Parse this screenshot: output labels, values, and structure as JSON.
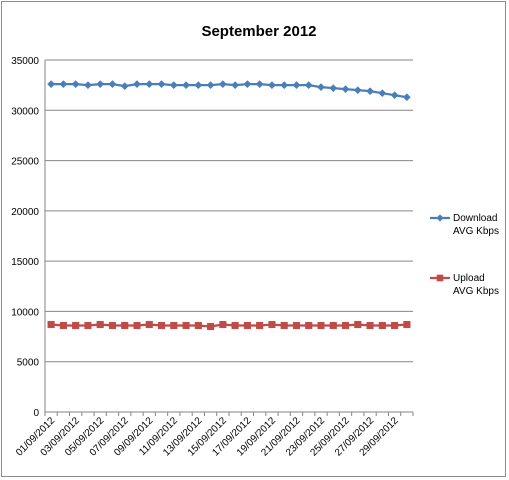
{
  "chart_data": {
    "type": "line",
    "title": "September 2012",
    "xlabel": "",
    "ylabel": "",
    "ylim": [
      0,
      35000
    ],
    "y_ticks": [
      0,
      5000,
      10000,
      15000,
      20000,
      25000,
      30000,
      35000
    ],
    "grid": true,
    "legend_position": "right",
    "categories": [
      "01/09/2012",
      "02/09/2012",
      "03/09/2012",
      "04/09/2012",
      "05/09/2012",
      "06/09/2012",
      "07/09/2012",
      "08/09/2012",
      "09/09/2012",
      "10/09/2012",
      "11/09/2012",
      "12/09/2012",
      "13/09/2012",
      "14/09/2012",
      "15/09/2012",
      "16/09/2012",
      "17/09/2012",
      "18/09/2012",
      "19/09/2012",
      "20/09/2012",
      "21/09/2012",
      "22/09/2012",
      "23/09/2012",
      "24/09/2012",
      "25/09/2012",
      "26/09/2012",
      "27/09/2012",
      "28/09/2012",
      "29/09/2012",
      "30/09/2012"
    ],
    "x_tick_labels_shown": [
      "01/09/2012",
      "03/09/2012",
      "05/09/2012",
      "07/09/2012",
      "09/09/2012",
      "11/09/2012",
      "13/09/2012",
      "15/09/2012",
      "17/09/2012",
      "19/09/2012",
      "21/09/2012",
      "23/09/2012",
      "25/09/2012",
      "27/09/2012",
      "29/09/2012"
    ],
    "series": [
      {
        "name": "Download AVG Kbps",
        "legend_lines": [
          "Download",
          "AVG Kbps"
        ],
        "color": "#4a7ebb",
        "marker": "diamond",
        "values": [
          32600,
          32600,
          32600,
          32500,
          32600,
          32600,
          32400,
          32600,
          32600,
          32600,
          32500,
          32500,
          32500,
          32500,
          32600,
          32500,
          32600,
          32600,
          32500,
          32500,
          32500,
          32500,
          32300,
          32200,
          32100,
          32000,
          31900,
          31700,
          31500,
          31300
        ]
      },
      {
        "name": "Upload AVG Kbps",
        "legend_lines": [
          "Upload",
          "AVG Kbps"
        ],
        "color": "#be4b48",
        "marker": "square",
        "values": [
          8700,
          8600,
          8600,
          8600,
          8700,
          8600,
          8600,
          8600,
          8700,
          8600,
          8600,
          8600,
          8600,
          8500,
          8700,
          8600,
          8600,
          8600,
          8700,
          8600,
          8600,
          8600,
          8600,
          8600,
          8600,
          8700,
          8600,
          8600,
          8600,
          8700
        ]
      }
    ]
  }
}
